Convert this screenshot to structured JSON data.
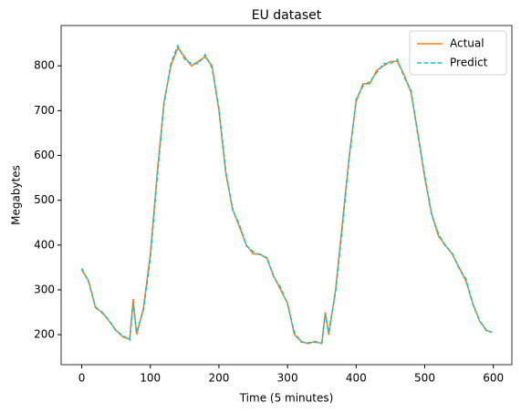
{
  "chart_data": {
    "type": "line",
    "title": "EU dataset",
    "xlabel": "Time (5 minutes)",
    "ylabel": "Megabytes",
    "x": [
      0,
      10,
      20,
      30,
      40,
      50,
      60,
      70,
      75,
      80,
      90,
      100,
      110,
      120,
      130,
      140,
      150,
      160,
      170,
      180,
      190,
      200,
      210,
      220,
      230,
      240,
      250,
      260,
      270,
      280,
      290,
      300,
      310,
      320,
      330,
      340,
      350,
      355,
      360,
      370,
      380,
      390,
      400,
      410,
      420,
      430,
      440,
      450,
      460,
      470,
      480,
      490,
      500,
      510,
      520,
      530,
      540,
      550,
      560,
      570,
      580,
      590,
      598
    ],
    "series": [
      {
        "name": "Actual",
        "color": "#ff7f0e",
        "dash": false,
        "values": [
          345,
          320,
          260,
          250,
          230,
          210,
          195,
          190,
          280,
          200,
          260,
          380,
          560,
          720,
          800,
          840,
          820,
          800,
          810,
          820,
          800,
          700,
          560,
          480,
          440,
          400,
          380,
          380,
          370,
          330,
          300,
          270,
          200,
          185,
          180,
          185,
          180,
          250,
          200,
          300,
          450,
          600,
          720,
          760,
          760,
          790,
          800,
          810,
          810,
          780,
          740,
          650,
          550,
          470,
          420,
          400,
          380,
          350,
          320,
          270,
          230,
          210,
          205
        ]
      },
      {
        "name": "Predict",
        "color": "#17becf",
        "dash": true,
        "values": [
          348,
          318,
          262,
          248,
          232,
          208,
          198,
          188,
          270,
          205,
          255,
          370,
          550,
          715,
          805,
          845,
          815,
          805,
          805,
          825,
          795,
          705,
          565,
          478,
          445,
          398,
          385,
          378,
          372,
          328,
          305,
          268,
          205,
          183,
          182,
          183,
          182,
          245,
          205,
          295,
          440,
          595,
          725,
          755,
          765,
          785,
          805,
          805,
          815,
          775,
          745,
          645,
          555,
          468,
          425,
          398,
          382,
          348,
          325,
          268,
          232,
          208,
          206
        ]
      }
    ],
    "xlim": [
      -30,
      627
    ],
    "ylim": [
      133,
      890
    ],
    "xticks": [
      0,
      100,
      200,
      300,
      400,
      500,
      600
    ],
    "yticks": [
      200,
      300,
      400,
      500,
      600,
      700,
      800
    ],
    "legend": "upper right"
  }
}
